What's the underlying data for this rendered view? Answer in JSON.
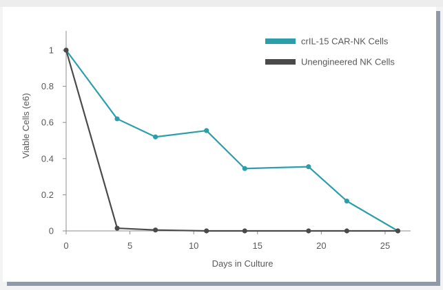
{
  "chart_data": {
    "type": "line",
    "xlabel": "Days in Culture",
    "ylabel": "Viable Cells (e6)",
    "xlim": [
      0,
      27
    ],
    "ylim": [
      0,
      1
    ],
    "xticks": [
      0,
      5,
      10,
      15,
      20,
      25
    ],
    "yticks": [
      0,
      0.2,
      0.4,
      0.6,
      0.8,
      1
    ],
    "legend_position": "top-right",
    "grid": false,
    "series": [
      {
        "name": "crIL-15 CAR-NK Cells",
        "color": "#2a9faa",
        "x": [
          0,
          4,
          7,
          11,
          14,
          19,
          22,
          26
        ],
        "y": [
          1,
          0.62,
          0.52,
          0.555,
          0.345,
          0.355,
          0.165,
          0
        ]
      },
      {
        "name": "Unengineered NK Cells",
        "color": "#4a4a4a",
        "x": [
          0,
          4,
          7,
          11,
          14,
          19,
          22,
          26
        ],
        "y": [
          1,
          0.015,
          0.005,
          0,
          0,
          0,
          0,
          0
        ]
      }
    ]
  }
}
